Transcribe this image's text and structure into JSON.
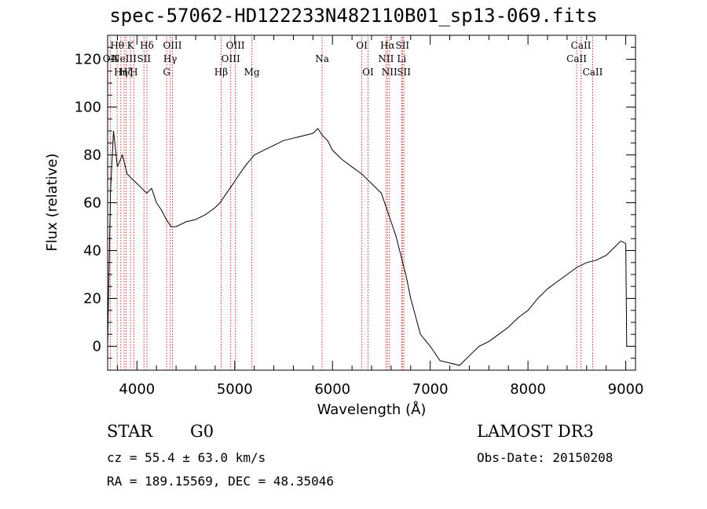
{
  "chart_data": {
    "type": "line",
    "title": "spec-57062-HD122233N482110B01_sp13-069.fits",
    "xlabel": "Wavelength (Å)",
    "ylabel": "Flux (relative)",
    "xlim": [
      3700,
      9100
    ],
    "ylim": [
      -10,
      130
    ],
    "xticks": [
      4000,
      5000,
      6000,
      7000,
      8000,
      9000
    ],
    "yticks": [
      0,
      20,
      40,
      60,
      80,
      100,
      120
    ],
    "grid": false,
    "line_color": "#000000",
    "marker_color": "#cc3333",
    "spectral_lines": [
      {
        "wavelength": 3727,
        "label": "OII",
        "row": 2
      },
      {
        "wavelength": 3798,
        "label": "Hθ",
        "row": 1
      },
      {
        "wavelength": 3835,
        "label": "Hη",
        "row": 3
      },
      {
        "wavelength": 3869,
        "label": "NeIII",
        "row": 2
      },
      {
        "wavelength": 3889,
        "label": "Hζ",
        "row": 3
      },
      {
        "wavelength": 3934,
        "label": "K",
        "row": 1
      },
      {
        "wavelength": 3968,
        "label": "H",
        "row": 3
      },
      {
        "wavelength": 4072,
        "label": "SII",
        "row": 2
      },
      {
        "wavelength": 4102,
        "label": "Hδ",
        "row": 1
      },
      {
        "wavelength": 4304,
        "label": "G",
        "row": 3
      },
      {
        "wavelength": 4340,
        "label": "Hγ",
        "row": 2
      },
      {
        "wavelength": 4363,
        "label": "OIII",
        "row": 1
      },
      {
        "wavelength": 4861,
        "label": "Hβ",
        "row": 3
      },
      {
        "wavelength": 4959,
        "label": "OIII",
        "row": 2
      },
      {
        "wavelength": 5007,
        "label": "OIII",
        "row": 1
      },
      {
        "wavelength": 5175,
        "label": "Mg",
        "row": 3
      },
      {
        "wavelength": 5894,
        "label": "Na",
        "row": 2
      },
      {
        "wavelength": 6300,
        "label": "OI",
        "row": 1
      },
      {
        "wavelength": 6364,
        "label": "OI",
        "row": 3
      },
      {
        "wavelength": 6548,
        "label": "NII",
        "row": 2
      },
      {
        "wavelength": 6563,
        "label": "Hα",
        "row": 1
      },
      {
        "wavelength": 6583,
        "label": "NII",
        "row": 3
      },
      {
        "wavelength": 6708,
        "label": "Li",
        "row": 2
      },
      {
        "wavelength": 6716,
        "label": "SII",
        "row": 1
      },
      {
        "wavelength": 6731,
        "label": "SII",
        "row": 3
      },
      {
        "wavelength": 8498,
        "label": "CaII",
        "row": 2
      },
      {
        "wavelength": 8542,
        "label": "CaII",
        "row": 1
      },
      {
        "wavelength": 8662,
        "label": "CaII",
        "row": 3
      }
    ],
    "series": [
      {
        "name": "flux",
        "x": [
          3700,
          3730,
          3760,
          3800,
          3850,
          3900,
          3950,
          4000,
          4050,
          4100,
          4150,
          4200,
          4250,
          4300,
          4350,
          4400,
          4500,
          4600,
          4700,
          4800,
          4850,
          4900,
          4950,
          5000,
          5100,
          5200,
          5300,
          5400,
          5500,
          5600,
          5700,
          5800,
          5850,
          5900,
          5950,
          6000,
          6100,
          6200,
          6300,
          6400,
          6500,
          6550,
          6600,
          6650,
          6700,
          6750,
          6800,
          6900,
          7000,
          7100,
          7200,
          7300,
          7400,
          7500,
          7600,
          7700,
          7800,
          7900,
          8000,
          8100,
          8200,
          8300,
          8400,
          8500,
          8600,
          8700,
          8800,
          8900,
          8950,
          9000,
          9010
        ],
        "y": [
          0,
          65,
          90,
          75,
          80,
          72,
          70,
          68,
          66,
          64,
          66,
          60,
          57,
          53,
          50,
          50,
          52,
          53,
          55,
          58,
          60,
          63,
          66,
          69,
          75,
          80,
          82,
          84,
          86,
          87,
          88,
          89,
          91,
          88,
          86,
          82,
          78,
          75,
          72,
          68,
          64,
          58,
          52,
          46,
          38,
          30,
          20,
          5,
          0,
          -6,
          -7,
          -8,
          -4,
          0,
          2,
          5,
          8,
          12,
          15,
          20,
          24,
          27,
          30,
          33,
          35,
          36,
          38,
          42,
          44,
          43,
          0
        ]
      }
    ]
  },
  "info": {
    "object_class": "STAR",
    "subclass": "G0",
    "survey": "LAMOST DR3",
    "cz": "cz = 55.4 ± 63.0 km/s",
    "obs_date": "Obs-Date: 20150208",
    "coords": "RA = 189.15569, DEC =  48.35046"
  }
}
